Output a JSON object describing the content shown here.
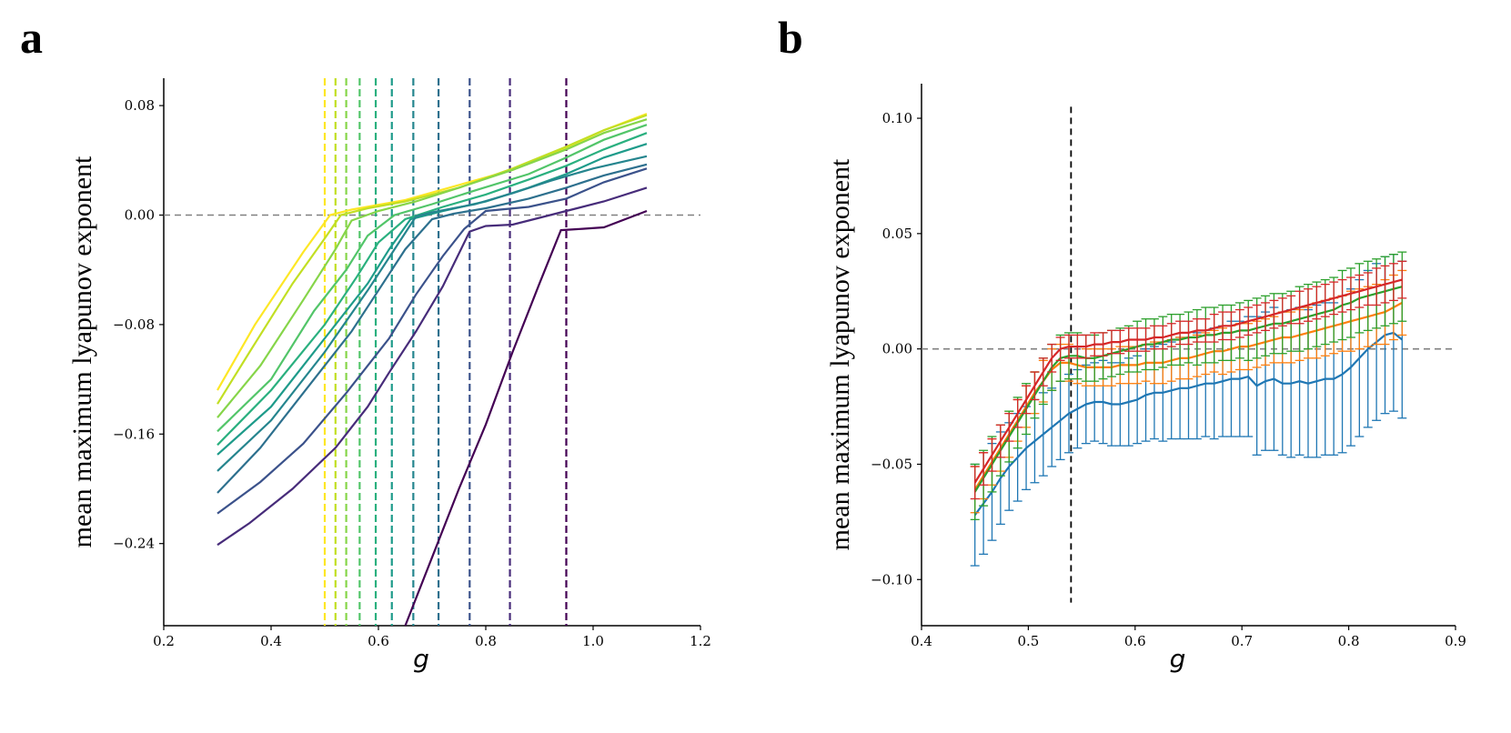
{
  "chart_data": [
    {
      "panel": "a",
      "type": "line",
      "xlabel": "g",
      "ylabel": "mean maximum lyapunov exponent",
      "xlim": [
        0.2,
        1.2
      ],
      "ylim": [
        -0.3,
        0.1
      ],
      "xticks": [
        0.2,
        0.4,
        0.6,
        0.8,
        1.0,
        1.2
      ],
      "xtick_labels": [
        "0.2",
        "0.4",
        "0.6",
        "0.8",
        "1.0",
        "1.2"
      ],
      "yticks": [
        0.08,
        0.0,
        -0.08,
        -0.16,
        -0.24
      ],
      "ytick_labels": [
        "0.08",
        "0.00",
        "−0.08",
        "−0.16",
        "−0.24"
      ],
      "reference_line": {
        "y": 0.0,
        "style": "dashed",
        "color": "#808080"
      },
      "series": [
        {
          "name": "curve-1",
          "color": "#fde725",
          "x": [
            0.3,
            0.37,
            0.46,
            0.51,
            0.55,
            0.65,
            0.75,
            0.85,
            0.95,
            1.02,
            1.1
          ],
          "y": [
            -0.128,
            -0.08,
            -0.027,
            0.0,
            0.004,
            0.011,
            0.022,
            0.033,
            0.049,
            0.062,
            0.074
          ],
          "critical_g": 0.5
        },
        {
          "name": "curve-2",
          "color": "#c2df23",
          "x": [
            0.3,
            0.36,
            0.44,
            0.5,
            0.53,
            0.58,
            0.65,
            0.75,
            0.85,
            0.95,
            1.02,
            1.1
          ],
          "y": [
            -0.138,
            -0.1,
            -0.05,
            -0.017,
            0.0,
            0.005,
            0.01,
            0.02,
            0.034,
            0.05,
            0.062,
            0.073
          ],
          "critical_g": 0.52
        },
        {
          "name": "curve-3",
          "color": "#86d549",
          "x": [
            0.3,
            0.38,
            0.46,
            0.52,
            0.55,
            0.6,
            0.67,
            0.75,
            0.85,
            0.95,
            1.02,
            1.1
          ],
          "y": [
            -0.148,
            -0.11,
            -0.062,
            -0.025,
            -0.004,
            0.003,
            0.01,
            0.02,
            0.033,
            0.048,
            0.06,
            0.07
          ],
          "critical_g": 0.54
        },
        {
          "name": "curve-4",
          "color": "#52c569",
          "x": [
            0.3,
            0.4,
            0.48,
            0.54,
            0.58,
            0.63,
            0.7,
            0.78,
            0.88,
            0.95,
            1.02,
            1.1
          ],
          "y": [
            -0.158,
            -0.12,
            -0.07,
            -0.04,
            -0.015,
            0.0,
            0.008,
            0.018,
            0.03,
            0.042,
            0.055,
            0.066
          ],
          "critical_g": 0.565
        },
        {
          "name": "curve-5",
          "color": "#2ab07f",
          "x": [
            0.3,
            0.4,
            0.5,
            0.56,
            0.6,
            0.65,
            0.72,
            0.8,
            0.88,
            0.95,
            1.02,
            1.1
          ],
          "y": [
            -0.168,
            -0.128,
            -0.08,
            -0.045,
            -0.02,
            -0.003,
            0.006,
            0.015,
            0.026,
            0.036,
            0.048,
            0.06
          ],
          "critical_g": 0.595
        },
        {
          "name": "curve-6",
          "color": "#1e9b8a",
          "x": [
            0.3,
            0.4,
            0.5,
            0.58,
            0.62,
            0.66,
            0.72,
            0.8,
            0.88,
            0.95,
            1.02,
            1.1
          ],
          "y": [
            -0.175,
            -0.14,
            -0.09,
            -0.05,
            -0.025,
            -0.003,
            0.003,
            0.01,
            0.02,
            0.03,
            0.042,
            0.052
          ],
          "critical_g": 0.625
        },
        {
          "name": "curve-7",
          "color": "#25858e",
          "x": [
            0.3,
            0.4,
            0.5,
            0.58,
            0.63,
            0.67,
            0.7,
            0.78,
            0.85,
            0.92,
            1.0,
            1.1
          ],
          "y": [
            -0.187,
            -0.15,
            -0.1,
            -0.055,
            -0.025,
            -0.001,
            0.002,
            0.008,
            0.016,
            0.025,
            0.034,
            0.043
          ],
          "critical_g": 0.665
        },
        {
          "name": "curve-8",
          "color": "#2d708e",
          "x": [
            0.3,
            0.38,
            0.47,
            0.55,
            0.6,
            0.65,
            0.7,
            0.74,
            0.8,
            0.88,
            0.95,
            1.02,
            1.1
          ],
          "y": [
            -0.203,
            -0.17,
            -0.125,
            -0.085,
            -0.055,
            -0.025,
            -0.003,
            0.001,
            0.005,
            0.012,
            0.02,
            0.029,
            0.037
          ],
          "critical_g": 0.712
        },
        {
          "name": "curve-9",
          "color": "#3b528b",
          "x": [
            0.3,
            0.38,
            0.46,
            0.54,
            0.62,
            0.67,
            0.72,
            0.76,
            0.8,
            0.88,
            0.95,
            1.02,
            1.1
          ],
          "y": [
            -0.218,
            -0.195,
            -0.167,
            -0.13,
            -0.09,
            -0.058,
            -0.03,
            -0.01,
            0.003,
            0.006,
            0.012,
            0.024,
            0.034
          ],
          "critical_g": 0.77
        },
        {
          "name": "curve-10",
          "color": "#472c7a",
          "x": [
            0.3,
            0.36,
            0.44,
            0.52,
            0.58,
            0.62,
            0.67,
            0.72,
            0.77,
            0.8,
            0.85,
            0.88,
            0.95,
            1.02,
            1.1
          ],
          "y": [
            -0.241,
            -0.225,
            -0.2,
            -0.17,
            -0.14,
            -0.115,
            -0.085,
            -0.052,
            -0.012,
            -0.008,
            -0.007,
            -0.004,
            0.003,
            0.01,
            0.02
          ],
          "critical_g": 0.845
        },
        {
          "name": "curve-11",
          "color": "#440154",
          "x": [
            0.65,
            0.7,
            0.75,
            0.8,
            0.85,
            0.9,
            0.94,
            0.98,
            1.02,
            1.1
          ],
          "y": [
            -0.3,
            -0.25,
            -0.2,
            -0.153,
            -0.1,
            -0.05,
            -0.011,
            -0.01,
            -0.009,
            0.003
          ],
          "critical_g": 0.95
        }
      ]
    },
    {
      "panel": "b",
      "type": "line",
      "xlabel": "g",
      "ylabel": "mean maximum lyapunov exponent",
      "xlim": [
        0.4,
        0.9
      ],
      "ylim": [
        -0.12,
        0.115
      ],
      "xticks": [
        0.4,
        0.5,
        0.6,
        0.7,
        0.8,
        0.9
      ],
      "xtick_labels": [
        "0.4",
        "0.5",
        "0.6",
        "0.7",
        "0.8",
        "0.9"
      ],
      "yticks": [
        0.1,
        0.05,
        0.0,
        -0.05,
        -0.1
      ],
      "ytick_labels": [
        "0.10",
        "0.05",
        "0.00",
        "−0.05",
        "−0.10"
      ],
      "reference_line": {
        "y": 0.0,
        "style": "dashed",
        "color": "#808080"
      },
      "critical_line": {
        "x": 0.54,
        "y_range": [
          -0.11,
          0.105
        ],
        "style": "dashed",
        "color": "#000000"
      },
      "series": [
        {
          "name": "blue",
          "color": "#1f77b4",
          "y": [
            -0.072,
            -0.067,
            -0.062,
            -0.056,
            -0.051,
            -0.047,
            -0.043,
            -0.04,
            -0.037,
            -0.034,
            -0.031,
            -0.028,
            -0.026,
            -0.024,
            -0.023,
            -0.023,
            -0.024,
            -0.024,
            -0.023,
            -0.022,
            -0.02,
            -0.019,
            -0.019,
            -0.018,
            -0.017,
            -0.017,
            -0.016,
            -0.015,
            -0.015,
            -0.014,
            -0.013,
            -0.013,
            -0.012,
            -0.016,
            -0.014,
            -0.013,
            -0.015,
            -0.015,
            -0.014,
            -0.015,
            -0.014,
            -0.013,
            -0.013,
            -0.011,
            -0.008,
            -0.004,
            0.0,
            0.003,
            0.006,
            0.007,
            0.004
          ],
          "err": [
            0.022,
            0.022,
            0.021,
            0.02,
            0.019,
            0.019,
            0.018,
            0.018,
            0.018,
            0.017,
            0.017,
            0.017,
            0.017,
            0.017,
            0.017,
            0.018,
            0.018,
            0.018,
            0.019,
            0.019,
            0.02,
            0.02,
            0.021,
            0.021,
            0.022,
            0.022,
            0.023,
            0.023,
            0.024,
            0.024,
            0.025,
            0.025,
            0.026,
            0.03,
            0.03,
            0.031,
            0.031,
            0.032,
            0.032,
            0.032,
            0.033,
            0.033,
            0.033,
            0.034,
            0.034,
            0.034,
            0.034,
            0.034,
            0.034,
            0.034,
            0.034
          ]
        },
        {
          "name": "orange",
          "color": "#ff7f0e",
          "y": [
            -0.061,
            -0.055,
            -0.049,
            -0.043,
            -0.037,
            -0.031,
            -0.025,
            -0.019,
            -0.014,
            -0.009,
            -0.006,
            -0.006,
            -0.007,
            -0.008,
            -0.008,
            -0.008,
            -0.008,
            -0.007,
            -0.007,
            -0.007,
            -0.006,
            -0.006,
            -0.006,
            -0.005,
            -0.004,
            -0.004,
            -0.003,
            -0.002,
            -0.001,
            -0.001,
            0.0,
            0.001,
            0.001,
            0.002,
            0.003,
            0.004,
            0.005,
            0.005,
            0.006,
            0.007,
            0.008,
            0.009,
            0.01,
            0.011,
            0.012,
            0.013,
            0.014,
            0.015,
            0.016,
            0.018,
            0.02
          ],
          "err": [
            0.01,
            0.01,
            0.01,
            0.01,
            0.01,
            0.009,
            0.009,
            0.009,
            0.009,
            0.009,
            0.008,
            0.008,
            0.008,
            0.008,
            0.008,
            0.008,
            0.008,
            0.008,
            0.008,
            0.008,
            0.008,
            0.009,
            0.009,
            0.009,
            0.009,
            0.009,
            0.009,
            0.009,
            0.009,
            0.01,
            0.01,
            0.01,
            0.01,
            0.01,
            0.01,
            0.01,
            0.011,
            0.011,
            0.011,
            0.011,
            0.012,
            0.012,
            0.012,
            0.012,
            0.013,
            0.013,
            0.013,
            0.013,
            0.014,
            0.014,
            0.014
          ]
        },
        {
          "name": "green",
          "color": "#2ca02c",
          "y": [
            -0.062,
            -0.056,
            -0.05,
            -0.044,
            -0.038,
            -0.032,
            -0.026,
            -0.02,
            -0.014,
            -0.008,
            -0.004,
            -0.003,
            -0.003,
            -0.004,
            -0.004,
            -0.003,
            -0.002,
            -0.001,
            0.0,
            0.001,
            0.002,
            0.002,
            0.003,
            0.004,
            0.004,
            0.005,
            0.005,
            0.006,
            0.006,
            0.007,
            0.007,
            0.008,
            0.008,
            0.009,
            0.01,
            0.011,
            0.011,
            0.012,
            0.013,
            0.014,
            0.015,
            0.016,
            0.017,
            0.019,
            0.02,
            0.022,
            0.023,
            0.024,
            0.025,
            0.026,
            0.027
          ],
          "err": [
            0.012,
            0.012,
            0.012,
            0.011,
            0.011,
            0.011,
            0.011,
            0.01,
            0.01,
            0.01,
            0.01,
            0.01,
            0.01,
            0.01,
            0.01,
            0.01,
            0.01,
            0.01,
            0.01,
            0.011,
            0.011,
            0.011,
            0.011,
            0.011,
            0.011,
            0.011,
            0.012,
            0.012,
            0.012,
            0.012,
            0.012,
            0.012,
            0.013,
            0.013,
            0.013,
            0.013,
            0.013,
            0.013,
            0.014,
            0.014,
            0.014,
            0.014,
            0.014,
            0.015,
            0.015,
            0.015,
            0.015,
            0.015,
            0.015,
            0.015,
            0.015
          ]
        },
        {
          "name": "red",
          "color": "#d62728",
          "y": [
            -0.058,
            -0.052,
            -0.046,
            -0.04,
            -0.034,
            -0.028,
            -0.022,
            -0.016,
            -0.01,
            -0.004,
            0.0,
            0.001,
            0.001,
            0.001,
            0.002,
            0.002,
            0.003,
            0.003,
            0.004,
            0.004,
            0.004,
            0.005,
            0.005,
            0.006,
            0.007,
            0.007,
            0.008,
            0.008,
            0.009,
            0.01,
            0.01,
            0.011,
            0.012,
            0.013,
            0.014,
            0.015,
            0.016,
            0.017,
            0.018,
            0.019,
            0.02,
            0.021,
            0.022,
            0.023,
            0.024,
            0.025,
            0.026,
            0.027,
            0.028,
            0.029,
            0.03
          ],
          "err": [
            0.007,
            0.007,
            0.007,
            0.007,
            0.006,
            0.006,
            0.006,
            0.006,
            0.006,
            0.006,
            0.005,
            0.005,
            0.005,
            0.005,
            0.005,
            0.005,
            0.005,
            0.005,
            0.005,
            0.005,
            0.005,
            0.005,
            0.005,
            0.005,
            0.005,
            0.005,
            0.005,
            0.005,
            0.006,
            0.006,
            0.006,
            0.006,
            0.006,
            0.006,
            0.006,
            0.006,
            0.006,
            0.006,
            0.007,
            0.007,
            0.007,
            0.007,
            0.007,
            0.007,
            0.007,
            0.007,
            0.007,
            0.008,
            0.008,
            0.008,
            0.008
          ]
        }
      ],
      "x_start": 0.45,
      "x_step": 0.008
    }
  ],
  "panel_labels": {
    "a": "a",
    "b": "b"
  }
}
